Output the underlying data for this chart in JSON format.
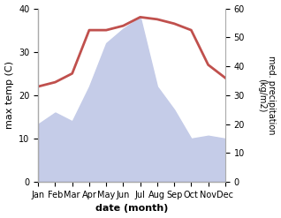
{
  "months": [
    "Jan",
    "Feb",
    "Mar",
    "Apr",
    "May",
    "Jun",
    "Jul",
    "Aug",
    "Sep",
    "Oct",
    "Nov",
    "Dec"
  ],
  "temperature": [
    22,
    23,
    25,
    35,
    35,
    36,
    38,
    37.5,
    36.5,
    35,
    27,
    24
  ],
  "precipitation": [
    20,
    24,
    21,
    33,
    48,
    53,
    57,
    33,
    25,
    15,
    16,
    15
  ],
  "temp_color": "#c0504d",
  "precip_fill_color": "#c5cce8",
  "ylabel_left": "max temp (C)",
  "ylabel_right": "med. precipitation\n(kg/m2)",
  "xlabel": "date (month)",
  "ylim_left": [
    0,
    40
  ],
  "ylim_right": [
    0,
    60
  ],
  "yticks_left": [
    0,
    10,
    20,
    30,
    40
  ],
  "yticks_right": [
    0,
    10,
    20,
    30,
    40,
    50,
    60
  ],
  "background_color": "#ffffff",
  "line_width": 2.0
}
